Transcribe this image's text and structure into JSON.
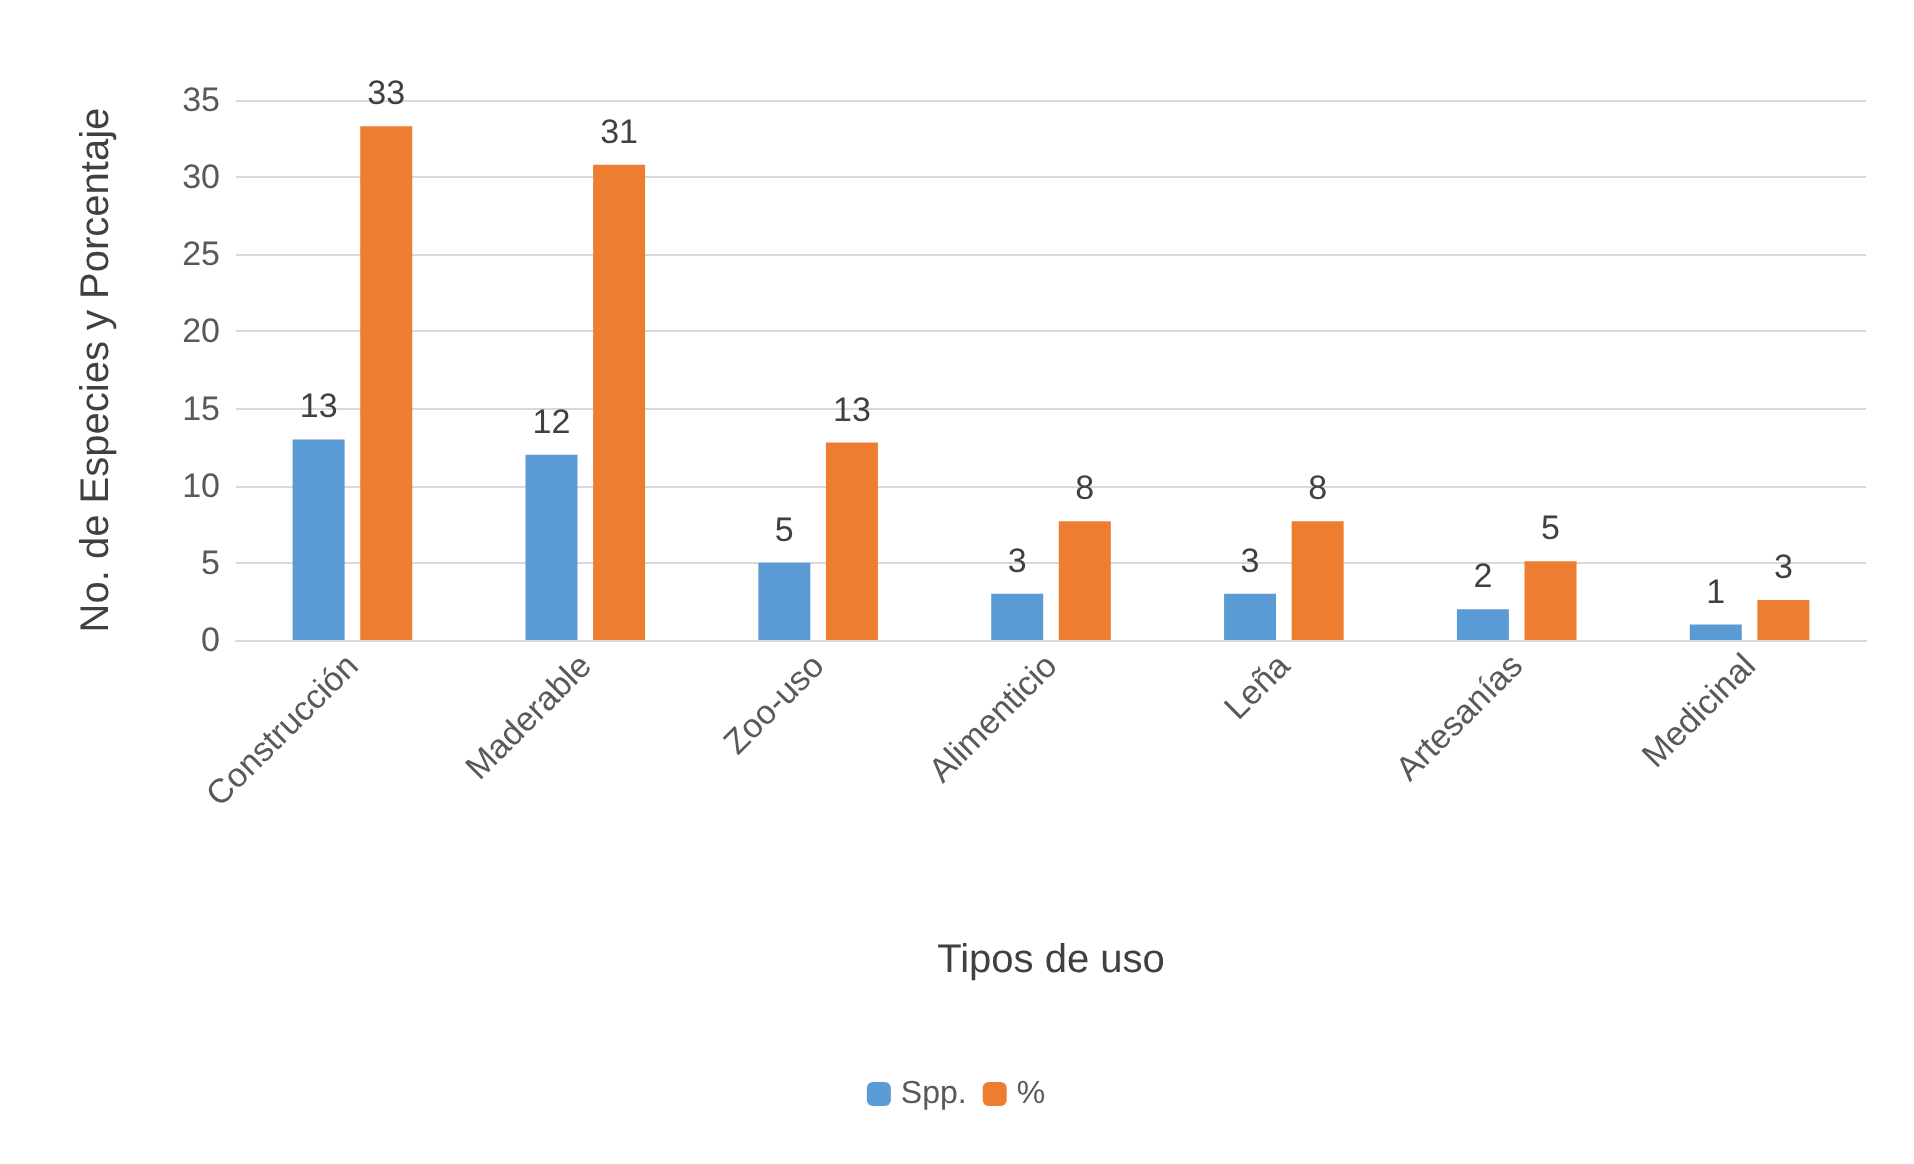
{
  "chart_data": {
    "type": "bar",
    "xlabel": "Tipos de uso",
    "ylabel": "No. de Especies y Porcentaje",
    "categories": [
      "Construcción",
      "Maderable",
      "Zoo-uso",
      "Alimenticio",
      "Leña",
      "Artesanías",
      "Medicinal"
    ],
    "series": [
      {
        "name": "Spp.",
        "color": "#5b9bd5",
        "values": [
          13,
          12,
          5,
          3,
          3,
          2,
          1
        ],
        "value_labels": [
          "13",
          "12",
          "5",
          "3",
          "3",
          "2",
          "1"
        ]
      },
      {
        "name": "%",
        "color": "#ed7d31",
        "values": [
          33.3,
          30.8,
          12.8,
          7.7,
          7.7,
          5.1,
          2.6
        ],
        "value_labels": [
          "33",
          "31",
          "13",
          "8",
          "8",
          "5",
          "3"
        ]
      }
    ],
    "ylim": [
      0,
      35
    ],
    "yticks": [
      0,
      5,
      10,
      15,
      20,
      25,
      30,
      35
    ],
    "grid": "y",
    "legend": "bottom"
  }
}
